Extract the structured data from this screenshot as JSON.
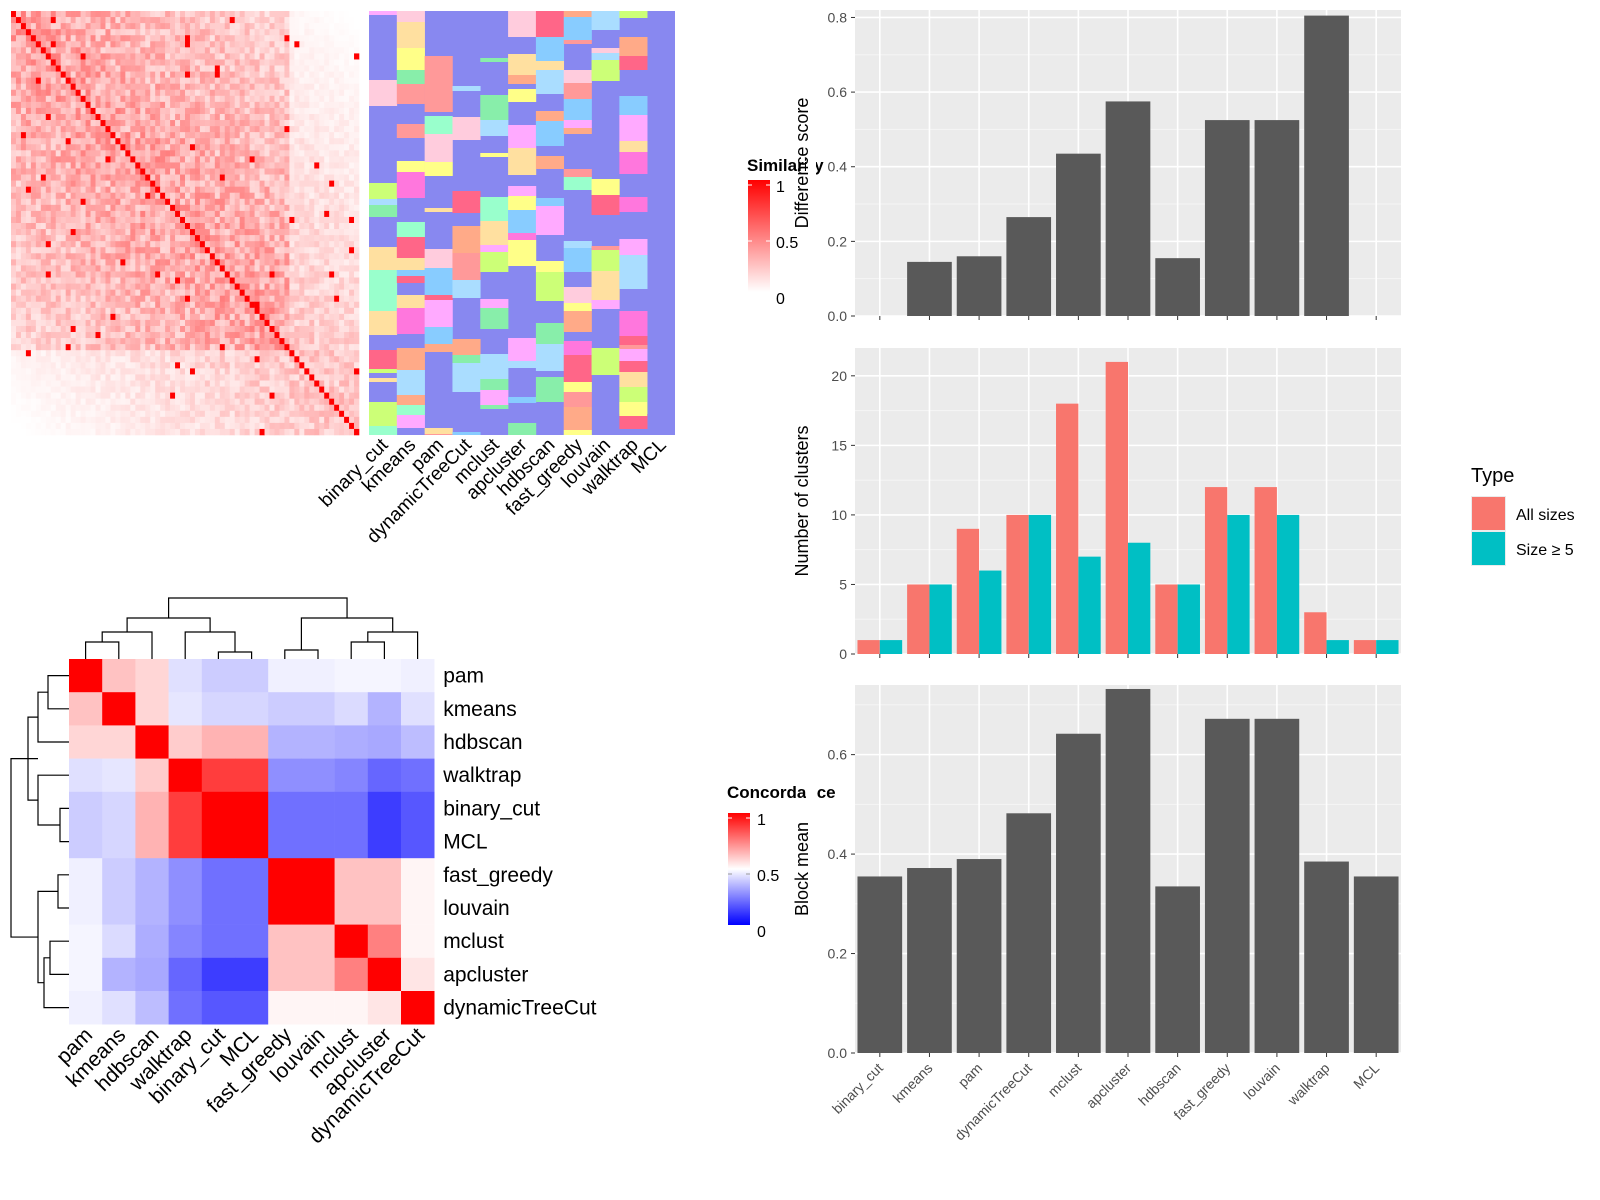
{
  "chart_data": [
    {
      "id": "similarity_heatmap",
      "type": "heatmap",
      "legend": {
        "title": "Similarity",
        "ticks": [
          "1",
          "0.5",
          "0"
        ],
        "colors": [
          "#ffffff",
          "#ff0000"
        ]
      },
      "column_labels": [
        "binary_cut",
        "kmeans",
        "pam",
        "dynamicTreeCut",
        "mclust",
        "apcluster",
        "hdbscan",
        "fast_greedy",
        "louvain",
        "walktrap",
        "MCL"
      ]
    },
    {
      "id": "concordance_heatmap",
      "type": "heatmap",
      "legend": {
        "title": "Concordance",
        "ticks": [
          "1",
          "0.5",
          "0"
        ],
        "colors": [
          "#0000ff",
          "#ffffff",
          "#ff0000"
        ]
      },
      "row_labels": [
        "pam",
        "kmeans",
        "hdbscan",
        "walktrap",
        "binary_cut",
        "MCL",
        "fast_greedy",
        "louvain",
        "mclust",
        "apcluster",
        "dynamicTreeCut"
      ],
      "column_labels": [
        "pam",
        "kmeans",
        "hdbscan",
        "walktrap",
        "binary_cut",
        "MCL",
        "fast_greedy",
        "louvain",
        "mclust",
        "apcluster",
        "dynamicTreeCut"
      ],
      "values": [
        [
          1.0,
          0.62,
          0.58,
          0.44,
          0.4,
          0.4,
          0.47,
          0.47,
          0.48,
          0.48,
          0.47
        ],
        [
          0.62,
          1.0,
          0.58,
          0.45,
          0.42,
          0.42,
          0.4,
          0.4,
          0.43,
          0.35,
          0.44
        ],
        [
          0.58,
          0.58,
          1.0,
          0.6,
          0.65,
          0.65,
          0.35,
          0.35,
          0.34,
          0.33,
          0.37
        ],
        [
          0.44,
          0.45,
          0.6,
          1.0,
          0.88,
          0.88,
          0.28,
          0.28,
          0.26,
          0.2,
          0.22
        ],
        [
          0.4,
          0.42,
          0.65,
          0.88,
          1.0,
          1.0,
          0.22,
          0.22,
          0.22,
          0.12,
          0.17
        ],
        [
          0.4,
          0.42,
          0.65,
          0.88,
          1.0,
          1.0,
          0.22,
          0.22,
          0.22,
          0.12,
          0.17
        ],
        [
          0.47,
          0.4,
          0.35,
          0.28,
          0.22,
          0.22,
          1.0,
          1.0,
          0.62,
          0.62,
          0.52
        ],
        [
          0.47,
          0.4,
          0.35,
          0.28,
          0.22,
          0.22,
          1.0,
          1.0,
          0.62,
          0.62,
          0.52
        ],
        [
          0.48,
          0.43,
          0.34,
          0.26,
          0.22,
          0.22,
          0.62,
          0.62,
          1.0,
          0.75,
          0.52
        ],
        [
          0.48,
          0.35,
          0.33,
          0.2,
          0.12,
          0.12,
          0.62,
          0.62,
          0.75,
          1.0,
          0.55
        ],
        [
          0.47,
          0.44,
          0.37,
          0.22,
          0.17,
          0.17,
          0.52,
          0.52,
          0.52,
          0.55,
          1.0
        ]
      ]
    },
    {
      "id": "difference_score",
      "type": "bar",
      "ylabel": "Difference score",
      "categories": [
        "binary_cut",
        "kmeans",
        "pam",
        "dynamicTreeCut",
        "mclust",
        "apcluster",
        "hdbscan",
        "fast_greedy",
        "louvain",
        "walktrap",
        "MCL"
      ],
      "values": [
        0,
        0.145,
        0.16,
        0.265,
        0.435,
        0.575,
        0.155,
        0.525,
        0.525,
        0.805,
        0
      ],
      "ylim": [
        0,
        0.82
      ],
      "yticks": [
        "0.0",
        "0.2",
        "0.4",
        "0.6",
        "0.8"
      ],
      "color": "#595959"
    },
    {
      "id": "number_of_clusters",
      "type": "bar",
      "ylabel": "Number of clusters",
      "categories": [
        "binary_cut",
        "kmeans",
        "pam",
        "dynamicTreeCut",
        "mclust",
        "apcluster",
        "hdbscan",
        "fast_greedy",
        "louvain",
        "walktrap",
        "MCL"
      ],
      "series": [
        {
          "name": "All sizes",
          "color": "#F8766D",
          "values": [
            1,
            5,
            9,
            10,
            18,
            21,
            5,
            12,
            12,
            3,
            1
          ]
        },
        {
          "name": "Size ≥ 5",
          "color": "#00BFC4",
          "values": [
            1,
            5,
            6,
            10,
            7,
            8,
            5,
            10,
            10,
            1,
            1
          ]
        }
      ],
      "ylim": [
        0,
        22
      ],
      "yticks": [
        "0",
        "5",
        "10",
        "15",
        "20"
      ],
      "legend": {
        "title": "Type"
      }
    },
    {
      "id": "block_mean",
      "type": "bar",
      "ylabel": "Block mean",
      "categories": [
        "binary_cut",
        "kmeans",
        "pam",
        "dynamicTreeCut",
        "mclust",
        "apcluster",
        "hdbscan",
        "fast_greedy",
        "louvain",
        "walktrap",
        "MCL"
      ],
      "values": [
        0.355,
        0.372,
        0.39,
        0.482,
        0.642,
        0.732,
        0.335,
        0.672,
        0.672,
        0.385,
        0.355
      ],
      "ylim": [
        0,
        0.74
      ],
      "yticks": [
        "0.0",
        "0.2",
        "0.4",
        "0.6"
      ],
      "color": "#595959"
    }
  ]
}
